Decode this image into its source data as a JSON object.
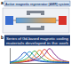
{
  "panel_a": {
    "label": "a",
    "title": "Active magnetic regenerator (AMR) system"
  },
  "panel_b": {
    "label": "b",
    "title": [
      "Series of Gd-based magnetic cooling",
      "materials developed in the work"
    ]
  },
  "chart_data": {
    "type": "line",
    "x": [
      0,
      1,
      2,
      3,
      4,
      5,
      6,
      7,
      8,
      9,
      10,
      11,
      12
    ],
    "series": [
      {
        "color": "#1f4fbf",
        "values": [
          0.5,
          1.5,
          4,
          7,
          4,
          2,
          1.2,
          0.8,
          0.6,
          0.5,
          0.4,
          0.3,
          0.3
        ]
      },
      {
        "color": "#2aa0d8",
        "values": [
          0.4,
          1,
          2,
          4.5,
          7.5,
          4.5,
          2,
          1.2,
          0.8,
          0.6,
          0.5,
          0.4,
          0.3
        ]
      },
      {
        "color": "#3aa84a",
        "values": [
          0.3,
          0.6,
          1.2,
          2.2,
          4.5,
          8,
          4.8,
          2.2,
          1.2,
          0.8,
          0.6,
          0.5,
          0.4
        ]
      },
      {
        "color": "#f08a24",
        "values": [
          0.3,
          0.5,
          0.8,
          1.4,
          2.5,
          4.8,
          8.5,
          5,
          2.4,
          1.3,
          0.8,
          0.6,
          0.5
        ]
      },
      {
        "color": "#d8322a",
        "values": [
          0.2,
          0.4,
          0.6,
          1,
          1.6,
          2.8,
          5,
          9,
          5.5,
          2.6,
          1.3,
          0.8,
          0.6
        ]
      },
      {
        "color": "#7a2a8a",
        "values": [
          0.2,
          0.3,
          0.5,
          0.8,
          1.2,
          1.8,
          3,
          5.5,
          9.5,
          6,
          2.8,
          1.4,
          0.8
        ]
      }
    ],
    "xlim": [
      0,
      12
    ],
    "ylim": [
      0,
      10
    ],
    "grid": false,
    "tick_labels": false
  }
}
